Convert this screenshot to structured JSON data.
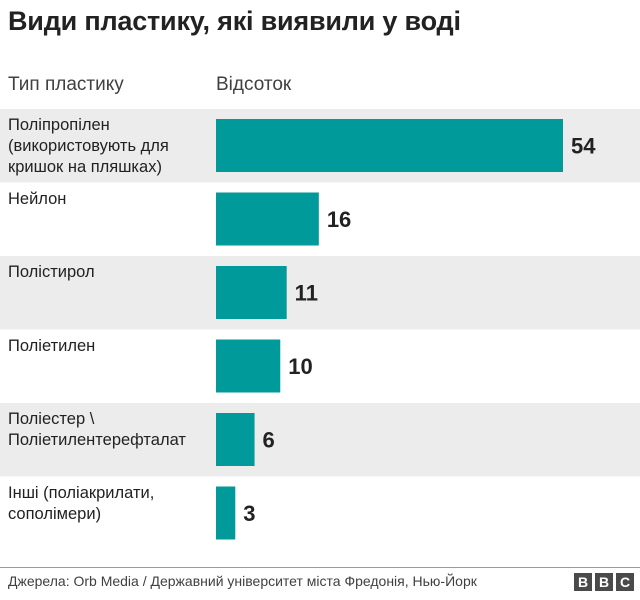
{
  "title": "Види пластику, які виявили у воді",
  "headers": {
    "type": "Тип пластику",
    "percent": "Відсоток"
  },
  "colors": {
    "bar": "#009a9a",
    "stripe": "#ececec",
    "value_text": "#222222"
  },
  "chart_data": {
    "type": "bar",
    "orientation": "horizontal",
    "categories": [
      "Поліпропілен (використовують для кришок на пляшках)",
      "Нейлон",
      "Полістирол",
      "Поліетилен",
      "Поліестер \\ Поліетилентерефталат",
      "Інші (поліакрилати, сополімери)"
    ],
    "category_lines": [
      [
        "Поліпропілен",
        "(використовують для",
        "кришок на пляшках)"
      ],
      [
        "Нейлон"
      ],
      [
        "Полістирол"
      ],
      [
        "Поліетилен"
      ],
      [
        "Поліестер \\",
        "Поліетилентерефталат"
      ],
      [
        "Інші (поліакрилати,",
        "сополімери)"
      ]
    ],
    "values": [
      54,
      16,
      11,
      10,
      6,
      3
    ],
    "xlim": [
      0,
      54
    ],
    "xlabel": "",
    "ylabel": "",
    "grid": false,
    "data_labels": true
  },
  "source": "Джерела: Orb Media / Державний університет міста Фредонія, Нью-Йорк",
  "logo": {
    "letters": [
      "B",
      "B",
      "C"
    ]
  }
}
